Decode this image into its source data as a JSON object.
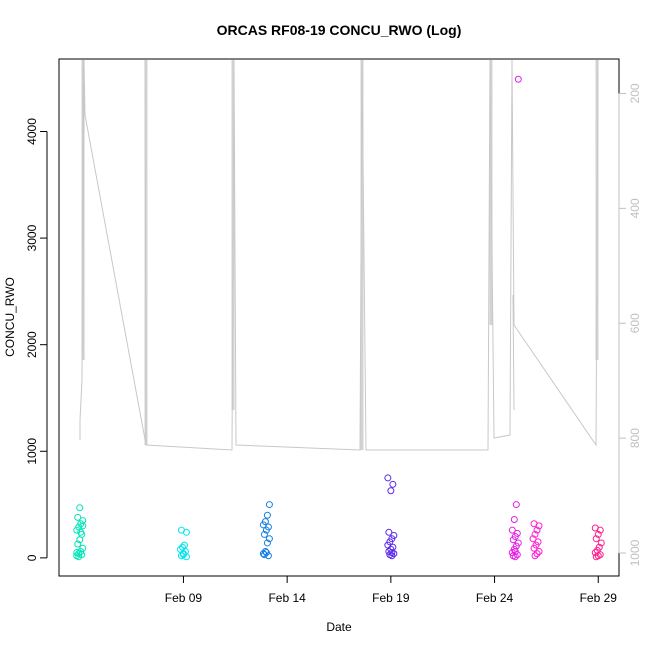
{
  "chart_data": {
    "type": "scatter",
    "title": "ORCAS RF08-19 CONCU_RWO (Log)",
    "xlabel": "Date",
    "ylabel": "CONCU_RWO",
    "x_range": [
      "2016-02-03",
      "2016-03-01"
    ],
    "ylim": [
      -170,
      4680
    ],
    "y_ticks": [
      0,
      1000,
      2000,
      3000,
      4000
    ],
    "x_ticks": [
      {
        "date": "2016-02-09",
        "label": "Feb 09"
      },
      {
        "date": "2016-02-14",
        "label": "Feb 14"
      },
      {
        "date": "2016-02-19",
        "label": "Feb 19"
      },
      {
        "date": "2016-02-24",
        "label": "Feb 24"
      },
      {
        "date": "2016-02-29",
        "label": "Feb 29"
      }
    ],
    "right_axis": {
      "ylim": [
        1040,
        140
      ],
      "ticks": [
        200,
        400,
        600,
        800,
        1000
      ],
      "color": "#c0c0c0"
    },
    "grid": false,
    "series": [
      {
        "color": "#00e5b8",
        "points": [
          [
            "2016-02-04",
            20
          ],
          [
            "2016-02-04",
            40
          ],
          [
            "2016-02-04",
            60
          ],
          [
            "2016-02-04",
            90
          ],
          [
            "2016-02-04",
            130
          ],
          [
            "2016-02-04",
            170
          ],
          [
            "2016-02-04",
            220
          ],
          [
            "2016-02-04",
            260
          ],
          [
            "2016-02-04",
            290
          ],
          [
            "2016-02-04",
            320
          ],
          [
            "2016-02-04",
            350
          ],
          [
            "2016-02-04",
            380
          ],
          [
            "2016-02-04",
            470
          ],
          [
            "2016-02-04",
            30
          ],
          [
            "2016-02-04",
            50
          ],
          [
            "2016-02-04",
            10
          ],
          [
            "2016-02-04",
            240
          ],
          [
            "2016-02-04",
            300
          ]
        ]
      },
      {
        "color": "#00e5f0",
        "points": [
          [
            "2016-02-09",
            10
          ],
          [
            "2016-02-09",
            20
          ],
          [
            "2016-02-09",
            40
          ],
          [
            "2016-02-09",
            60
          ],
          [
            "2016-02-09",
            80
          ],
          [
            "2016-02-09",
            100
          ],
          [
            "2016-02-09",
            120
          ],
          [
            "2016-02-09",
            240
          ],
          [
            "2016-02-09",
            260
          ],
          [
            "2016-02-09",
            30
          ]
        ]
      },
      {
        "color": "#1a7fe0",
        "points": [
          [
            "2016-02-13",
            20
          ],
          [
            "2016-02-13",
            40
          ],
          [
            "2016-02-13",
            60
          ],
          [
            "2016-02-13",
            140
          ],
          [
            "2016-02-13",
            180
          ],
          [
            "2016-02-13",
            220
          ],
          [
            "2016-02-13",
            260
          ],
          [
            "2016-02-13",
            290
          ],
          [
            "2016-02-13",
            310
          ],
          [
            "2016-02-13",
            340
          ],
          [
            "2016-02-13",
            400
          ],
          [
            "2016-02-13",
            500
          ],
          [
            "2016-02-13",
            30
          ],
          [
            "2016-02-13",
            50
          ]
        ]
      },
      {
        "color": "#5a2ae8",
        "points": [
          [
            "2016-02-19",
            20
          ],
          [
            "2016-02-19",
            40
          ],
          [
            "2016-02-19",
            60
          ],
          [
            "2016-02-19",
            80
          ],
          [
            "2016-02-19",
            100
          ],
          [
            "2016-02-19",
            120
          ],
          [
            "2016-02-19",
            150
          ],
          [
            "2016-02-19",
            180
          ],
          [
            "2016-02-19",
            210
          ],
          [
            "2016-02-19",
            240
          ],
          [
            "2016-02-19",
            630
          ],
          [
            "2016-02-19",
            690
          ],
          [
            "2016-02-19",
            750
          ],
          [
            "2016-02-19",
            30
          ],
          [
            "2016-02-19",
            50
          ]
        ]
      },
      {
        "color": "#e61ee6",
        "points": [
          [
            "2016-02-25",
            10
          ],
          [
            "2016-02-25",
            30
          ],
          [
            "2016-02-25",
            50
          ],
          [
            "2016-02-25",
            80
          ],
          [
            "2016-02-25",
            110
          ],
          [
            "2016-02-25",
            140
          ],
          [
            "2016-02-25",
            170
          ],
          [
            "2016-02-25",
            200
          ],
          [
            "2016-02-25",
            230
          ],
          [
            "2016-02-25",
            260
          ],
          [
            "2016-02-25",
            360
          ],
          [
            "2016-02-25",
            500
          ],
          [
            "2016-02-25",
            4490
          ],
          [
            "2016-02-25",
            20
          ],
          [
            "2016-02-25",
            60
          ]
        ]
      },
      {
        "color": "#ff1ed2",
        "points": [
          [
            "2016-02-26",
            20
          ],
          [
            "2016-02-26",
            40
          ],
          [
            "2016-02-26",
            60
          ],
          [
            "2016-02-26",
            90
          ],
          [
            "2016-02-26",
            120
          ],
          [
            "2016-02-26",
            150
          ],
          [
            "2016-02-26",
            180
          ],
          [
            "2016-02-26",
            220
          ],
          [
            "2016-02-26",
            260
          ],
          [
            "2016-02-26",
            300
          ],
          [
            "2016-02-26",
            320
          ]
        ]
      },
      {
        "color": "#ff1e8c",
        "points": [
          [
            "2016-02-29",
            10
          ],
          [
            "2016-02-29",
            20
          ],
          [
            "2016-02-29",
            30
          ],
          [
            "2016-02-29",
            50
          ],
          [
            "2016-02-29",
            70
          ],
          [
            "2016-02-29",
            100
          ],
          [
            "2016-02-29",
            140
          ],
          [
            "2016-02-29",
            180
          ],
          [
            "2016-02-29",
            220
          ],
          [
            "2016-02-29",
            260
          ],
          [
            "2016-02-29",
            280
          ]
        ]
      }
    ]
  }
}
